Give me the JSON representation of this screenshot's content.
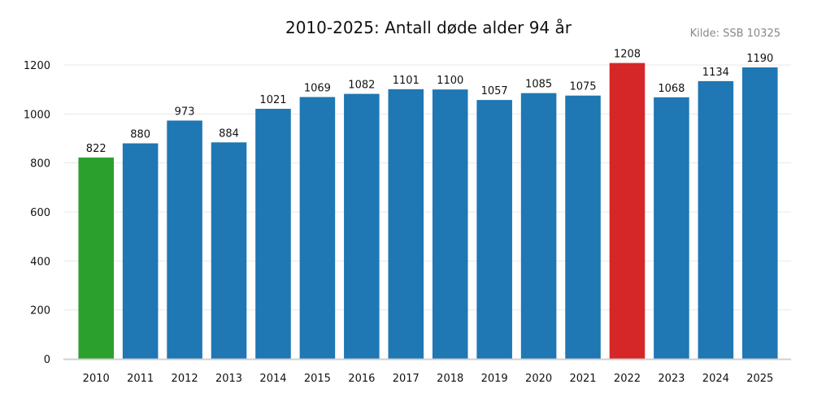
{
  "chart_data": {
    "type": "bar",
    "title": "2010-2025: Antall døde alder 94 år",
    "source": "Kilde: SSB 10325",
    "categories": [
      "2010",
      "2011",
      "2012",
      "2013",
      "2014",
      "2015",
      "2016",
      "2017",
      "2018",
      "2019",
      "2020",
      "2021",
      "2022",
      "2023",
      "2024",
      "2025"
    ],
    "values": [
      822,
      880,
      973,
      884,
      1021,
      1069,
      1082,
      1101,
      1100,
      1057,
      1085,
      1075,
      1208,
      1068,
      1134,
      1190
    ],
    "colors": [
      "#2ca02c",
      "#1f77b4",
      "#1f77b4",
      "#1f77b4",
      "#1f77b4",
      "#1f77b4",
      "#1f77b4",
      "#1f77b4",
      "#1f77b4",
      "#1f77b4",
      "#1f77b4",
      "#1f77b4",
      "#d62728",
      "#1f77b4",
      "#1f77b4",
      "#1f77b4"
    ],
    "highlight": {
      "lowest": "2010",
      "highest": "2022"
    },
    "yticks": [
      0,
      200,
      400,
      600,
      800,
      1000,
      1200
    ],
    "ylim": [
      0,
      1200
    ],
    "grid": true,
    "legend": "none"
  }
}
